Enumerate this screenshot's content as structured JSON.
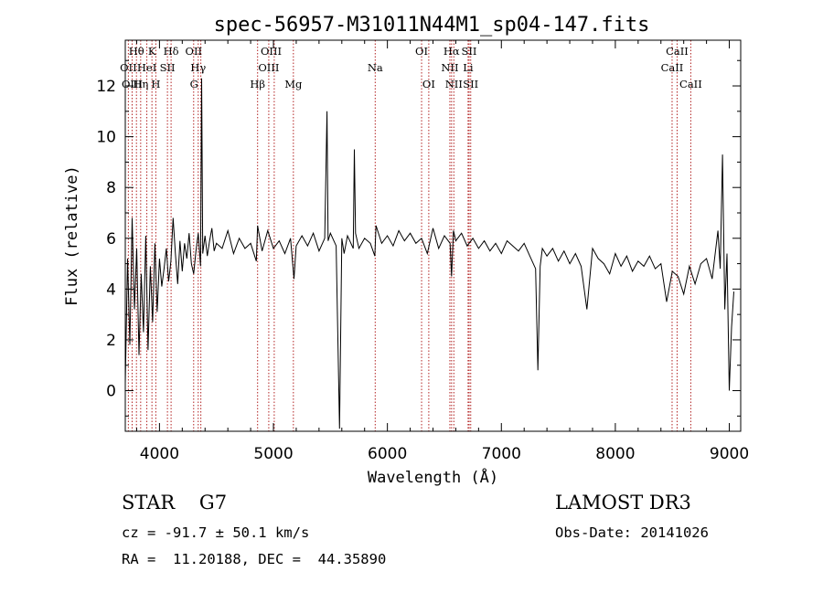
{
  "chart_data": {
    "type": "line",
    "title": "spec-56957-M31011N44M1_sp04-147.fits",
    "xlabel": "Wavelength (Å)",
    "ylabel": "Flux (relative)",
    "xlim": [
      3700,
      9100
    ],
    "ylim": [
      -1.6,
      13.8
    ],
    "xticks": [
      4000,
      5000,
      6000,
      7000,
      8000,
      9000
    ],
    "yticks": [
      0,
      2,
      4,
      6,
      8,
      10,
      12
    ],
    "grid": false,
    "series": [
      {
        "values_note": "",
        "x": [
          3700,
          3720,
          3740,
          3760,
          3780,
          3800,
          3820,
          3840,
          3860,
          3880,
          3900,
          3920,
          3940,
          3960,
          3980,
          4000,
          4020,
          4040,
          4060,
          4080,
          4100,
          4120,
          4140,
          4160,
          4180,
          4200,
          4220,
          4240,
          4260,
          4280,
          4300,
          4320,
          4340,
          4360,
          4370,
          4380,
          4400,
          4420,
          4440,
          4460,
          4480,
          4500,
          4550,
          4600,
          4650,
          4700,
          4750,
          4800,
          4850,
          4861,
          4900,
          4950,
          5000,
          5050,
          5100,
          5150,
          5180,
          5200,
          5250,
          5300,
          5350,
          5400,
          5450,
          5470,
          5480,
          5500,
          5550,
          5580,
          5600,
          5620,
          5650,
          5700,
          5710,
          5720,
          5750,
          5800,
          5850,
          5890,
          5900,
          5950,
          6000,
          6050,
          6100,
          6150,
          6200,
          6250,
          6300,
          6350,
          6400,
          6450,
          6500,
          6550,
          6563,
          6580,
          6600,
          6650,
          6700,
          6750,
          6800,
          6850,
          6900,
          6950,
          7000,
          7050,
          7100,
          7150,
          7200,
          7250,
          7300,
          7320,
          7340,
          7360,
          7400,
          7450,
          7500,
          7550,
          7600,
          7650,
          7700,
          7750,
          7800,
          7850,
          7900,
          7950,
          8000,
          8050,
          8100,
          8150,
          8200,
          8250,
          8300,
          8350,
          8400,
          8450,
          8500,
          8550,
          8600,
          8650,
          8700,
          8750,
          8800,
          8850,
          8900,
          8920,
          8940,
          8960,
          8980,
          9000,
          9020,
          9040
        ],
        "y": [
          0.3,
          5.2,
          1.8,
          6.8,
          3.2,
          5.6,
          1.4,
          4.6,
          2.3,
          6.1,
          1.6,
          4.9,
          2.7,
          5.8,
          3.1,
          5.2,
          4.1,
          4.8,
          5.6,
          4.3,
          5.1,
          6.8,
          5.4,
          4.2,
          5.9,
          4.7,
          5.8,
          5.2,
          6.2,
          5.0,
          4.6,
          5.5,
          6.2,
          4.9,
          12.3,
          5.4,
          6.1,
          5.3,
          5.9,
          6.4,
          5.5,
          5.8,
          5.6,
          6.3,
          5.4,
          6.0,
          5.6,
          5.8,
          5.1,
          6.5,
          5.5,
          6.3,
          5.6,
          5.9,
          5.4,
          6.0,
          4.4,
          5.7,
          6.1,
          5.7,
          6.2,
          5.5,
          6.0,
          11.0,
          5.9,
          6.2,
          5.7,
          -1.5,
          6.0,
          5.4,
          6.1,
          5.6,
          9.5,
          6.2,
          5.6,
          6.0,
          5.8,
          5.3,
          6.5,
          5.8,
          6.1,
          5.7,
          6.3,
          5.9,
          6.2,
          5.8,
          6.0,
          5.4,
          6.4,
          5.6,
          6.1,
          5.8,
          4.5,
          6.3,
          5.9,
          6.2,
          5.7,
          6.0,
          5.6,
          5.9,
          5.5,
          5.8,
          5.4,
          5.9,
          5.7,
          5.5,
          5.8,
          5.3,
          4.8,
          0.8,
          4.9,
          5.6,
          5.3,
          5.6,
          5.1,
          5.5,
          5.0,
          5.4,
          4.9,
          3.2,
          5.6,
          5.2,
          5.0,
          4.6,
          5.4,
          4.9,
          5.3,
          4.7,
          5.1,
          4.9,
          5.3,
          4.8,
          5.0,
          3.5,
          4.7,
          4.5,
          3.8,
          4.9,
          4.2,
          5.0,
          5.2,
          4.4,
          6.3,
          4.8,
          9.3,
          3.2,
          5.4,
          0.0,
          2.5,
          3.9
        ]
      }
    ]
  },
  "line_labels": [
    {
      "text": "Hθ",
      "x": 3798,
      "row": 0
    },
    {
      "text": "K",
      "x": 3934,
      "row": 0
    },
    {
      "text": "Hδ",
      "x": 4102,
      "row": 0
    },
    {
      "text": "OII",
      "x": 4300,
      "row": 0
    },
    {
      "text": "OIII",
      "x": 4980,
      "row": 0
    },
    {
      "text": "OI",
      "x": 6300,
      "row": 0
    },
    {
      "text": "Hα",
      "x": 6563,
      "row": 0
    },
    {
      "text": "SII",
      "x": 6717,
      "row": 0
    },
    {
      "text": "CaII",
      "x": 8542,
      "row": 0
    },
    {
      "text": "OII",
      "x": 3727,
      "row": 1
    },
    {
      "text": "HeI",
      "x": 3889,
      "row": 1
    },
    {
      "text": "SII",
      "x": 4070,
      "row": 1
    },
    {
      "text": "Hγ",
      "x": 4340,
      "row": 1
    },
    {
      "text": "OIII",
      "x": 4959,
      "row": 1
    },
    {
      "text": "Na",
      "x": 5893,
      "row": 1
    },
    {
      "text": "NII",
      "x": 6548,
      "row": 1
    },
    {
      "text": "Li",
      "x": 6708,
      "row": 1
    },
    {
      "text": "CaII",
      "x": 8498,
      "row": 1
    },
    {
      "text": "OIII",
      "x": 3760,
      "row": 2
    },
    {
      "text": "Hη",
      "x": 3835,
      "row": 2
    },
    {
      "text": "H",
      "x": 3968,
      "row": 2
    },
    {
      "text": "G",
      "x": 4304,
      "row": 2
    },
    {
      "text": "Hβ",
      "x": 4861,
      "row": 2
    },
    {
      "text": "Mg",
      "x": 5175,
      "row": 2
    },
    {
      "text": "OI",
      "x": 6363,
      "row": 2
    },
    {
      "text": "NII",
      "x": 6583,
      "row": 2
    },
    {
      "text": "SII",
      "x": 6731,
      "row": 2
    },
    {
      "text": "CaII",
      "x": 8662,
      "row": 2
    }
  ],
  "marker_lines": [
    3727,
    3760,
    3798,
    3835,
    3889,
    3934,
    3968,
    4070,
    4102,
    4300,
    4340,
    4363,
    4861,
    4959,
    5007,
    5175,
    5893,
    6300,
    6363,
    6548,
    6563,
    6583,
    6708,
    6717,
    6731,
    8498,
    8542,
    8662
  ],
  "colors": {
    "marker": "#b22222",
    "spectrum": "#000000"
  },
  "footer": {
    "object": "STAR    G7",
    "survey": "LAMOST DR3",
    "redshift": "cz = -91.7 ± 50.1 km/s",
    "obs_date": "Obs-Date: 20141026",
    "coords": "RA =  11.20188, DEC =  44.35890"
  }
}
